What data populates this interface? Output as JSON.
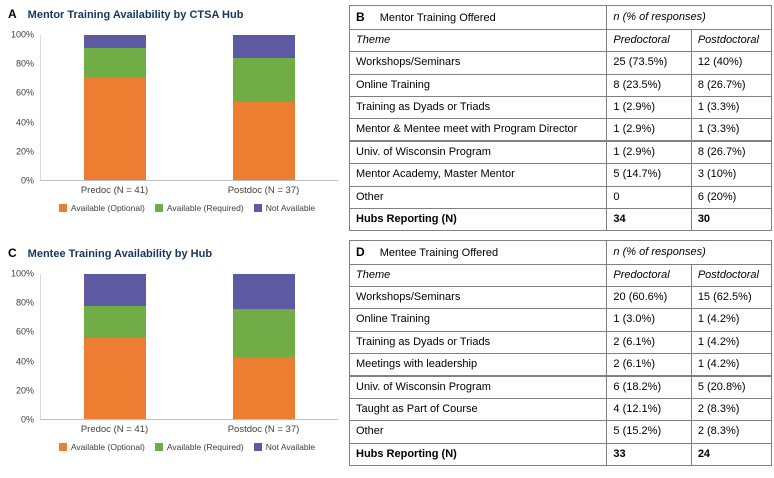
{
  "figure": {
    "background": "#ffffff"
  },
  "accent_colors": {
    "optional": "#ED7D31",
    "required": "#70AD47",
    "not_available": "#5D59A3",
    "title": "#17365D"
  },
  "chart_data": [
    {
      "type": "bar",
      "stacked": true,
      "panel_label": "A",
      "title": "Mentor Training Availability by CTSA Hub",
      "categories": [
        "Predoc (N = 41)",
        "Postdoc (N = 37)"
      ],
      "series": [
        {
          "name": "Available (Optional)",
          "color": "#ED7D31",
          "values": [
            71,
            54
          ]
        },
        {
          "name": "Available (Required)",
          "color": "#70AD47",
          "values": [
            20,
            30
          ]
        },
        {
          "name": "Not Available",
          "color": "#5D59A3",
          "values": [
            9,
            16
          ]
        }
      ],
      "ylim": [
        0,
        100
      ],
      "yticks": [
        "0%",
        "20%",
        "40%",
        "60%",
        "80%",
        "100%"
      ],
      "y_unit": "percent",
      "grid": false,
      "legend_position": "bottom"
    },
    {
      "type": "bar",
      "stacked": true,
      "panel_label": "C",
      "title": "Mentee Training Availability by Hub",
      "categories": [
        "Predoc (N = 41)",
        "Postdoc (N = 37)"
      ],
      "series": [
        {
          "name": "Available (Optional)",
          "color": "#ED7D31",
          "values": [
            56,
            43
          ]
        },
        {
          "name": "Available (Required)",
          "color": "#70AD47",
          "values": [
            22,
            33
          ]
        },
        {
          "name": "Not Available",
          "color": "#5D59A3",
          "values": [
            22,
            24
          ]
        }
      ],
      "ylim": [
        0,
        100
      ],
      "yticks": [
        "0%",
        "20%",
        "40%",
        "60%",
        "80%",
        "100%"
      ],
      "y_unit": "percent",
      "grid": false,
      "legend_position": "bottom"
    }
  ],
  "tables": {
    "B": {
      "panel_label": "B",
      "title": "Mentor Training Offered",
      "group_header": "n (% of responses)",
      "columns": [
        "Theme",
        "Predoctoral",
        "Postdoctoral"
      ],
      "rows": [
        [
          "Workshops/Seminars",
          "25 (73.5%)",
          "12 (40%)"
        ],
        [
          "Online Training",
          "8 (23.5%)",
          "8 (26.7%)"
        ],
        [
          "Training as Dyads or Triads",
          "1 (2.9%)",
          "1 (3.3%)"
        ],
        [
          "Mentor & Mentee meet with Program Director",
          "1 (2.9%)",
          "1 (3.3%)"
        ],
        [
          "Univ. of Wisconsin Program",
          "1 (2.9%)",
          "8 (26.7%)"
        ],
        [
          "Mentor Academy, Master Mentor",
          "5 (14.7%)",
          "3 (10%)"
        ],
        [
          "Other",
          "0",
          "6 (20%)"
        ],
        [
          "Hubs Reporting (N)",
          "34",
          "30"
        ]
      ],
      "section_break_row": 4
    },
    "D": {
      "panel_label": "D",
      "title": "Mentee Training Offered",
      "group_header": "n (% of responses)",
      "columns": [
        "Theme",
        "Predoctoral",
        "Postdoctoral"
      ],
      "rows": [
        [
          "Workshops/Seminars",
          "20 (60.6%)",
          "15 (62.5%)"
        ],
        [
          "Online Training",
          "1 (3.0%)",
          "1 (4.2%)"
        ],
        [
          "Training as Dyads or Triads",
          "2 (6.1%)",
          "1 (4.2%)"
        ],
        [
          "Meetings with leadership",
          "2 (6.1%)",
          "1 (4.2%)"
        ],
        [
          "Univ. of Wisconsin Program",
          "6 (18.2%)",
          "5 (20.8%)"
        ],
        [
          "Taught as Part of Course",
          "4 (12.1%)",
          "2 (8.3%)"
        ],
        [
          "Other",
          "5 (15.2%)",
          "2 (8.3%)"
        ],
        [
          "Hubs Reporting (N)",
          "33",
          "24"
        ]
      ],
      "section_break_row": 4
    }
  }
}
